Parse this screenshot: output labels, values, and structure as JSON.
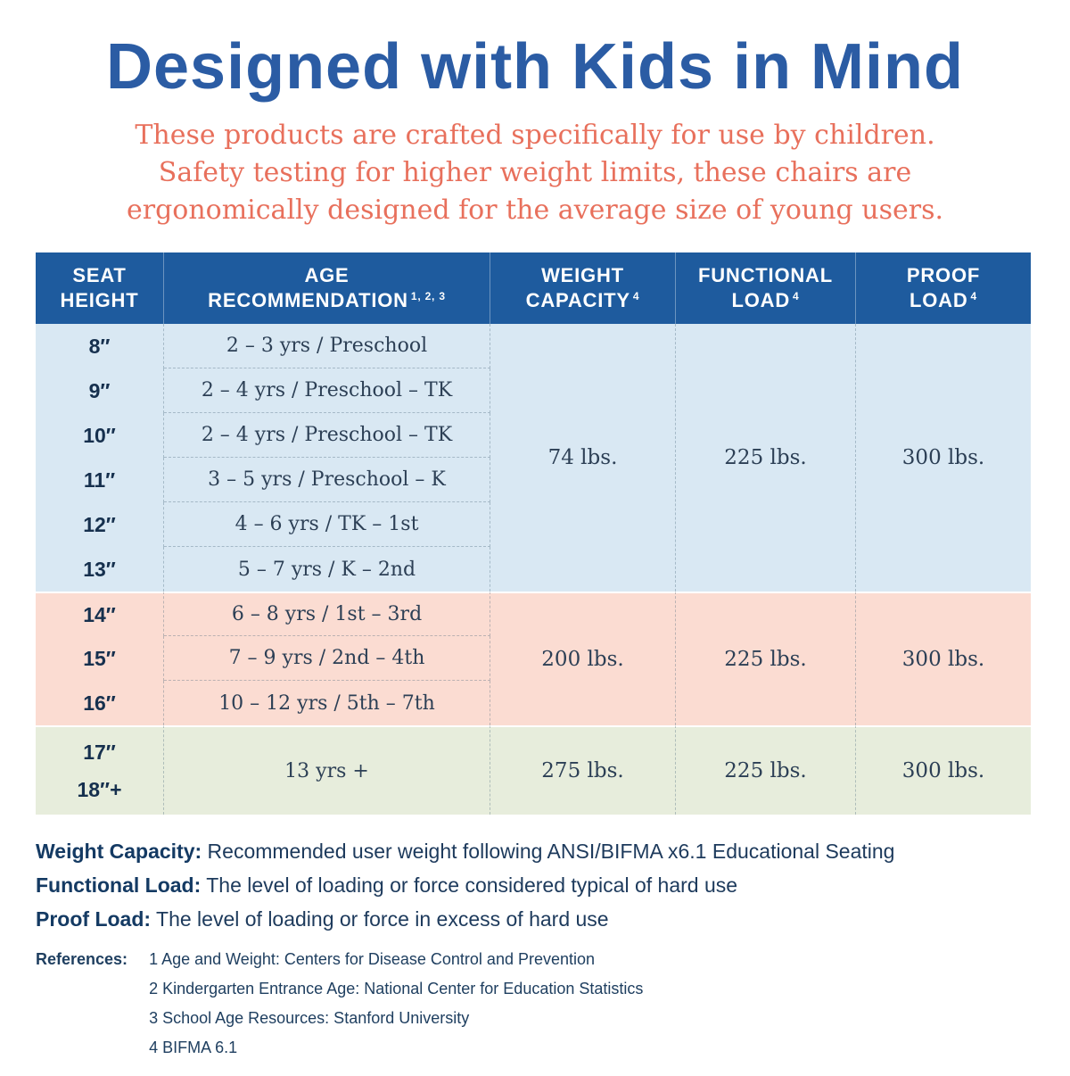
{
  "page": {
    "title": "Designed with Kids in Mind",
    "subtitle_lines": [
      "These products are crafted specifically for use by children.",
      "Safety testing for higher weight limits, these chairs are",
      "ergonomically designed for the average size of young users."
    ]
  },
  "table": {
    "headers": [
      {
        "line1": "SEAT",
        "line2": "HEIGHT",
        "sup": ""
      },
      {
        "line1": "AGE",
        "line2": "RECOMMENDATION",
        "sup": "1, 2, 3"
      },
      {
        "line1": "WEIGHT",
        "line2": "CAPACITY",
        "sup": "4"
      },
      {
        "line1": "FUNCTIONAL",
        "line2": "LOAD",
        "sup": "4"
      },
      {
        "line1": "PROOF",
        "line2": "LOAD",
        "sup": "4"
      }
    ],
    "groups": [
      {
        "rows": [
          {
            "height": "8″",
            "age": "2 – 3 yrs / Preschool"
          },
          {
            "height": "9″",
            "age": "2 – 4 yrs / Preschool – TK"
          },
          {
            "height": "10″",
            "age": "2 – 4 yrs / Preschool – TK"
          },
          {
            "height": "11″",
            "age": "3 – 5 yrs / Preschool – K"
          },
          {
            "height": "12″",
            "age": "4 – 6 yrs / TK – 1st"
          },
          {
            "height": "13″",
            "age": "5 – 7 yrs / K – 2nd"
          }
        ],
        "weight_capacity": "74 lbs.",
        "functional_load": "225 lbs.",
        "proof_load": "300 lbs."
      },
      {
        "rows": [
          {
            "height": "14″",
            "age": "6 – 8 yrs / 1st – 3rd"
          },
          {
            "height": "15″",
            "age": "7 – 9 yrs / 2nd – 4th"
          },
          {
            "height": "16″",
            "age": "10 – 12 yrs / 5th – 7th"
          }
        ],
        "weight_capacity": "200 lbs.",
        "functional_load": "225 lbs.",
        "proof_load": "300 lbs."
      },
      {
        "heights": [
          "17″",
          "18″+"
        ],
        "age": "13 yrs +",
        "weight_capacity": "275 lbs.",
        "functional_load": "225 lbs.",
        "proof_load": "300 lbs."
      }
    ]
  },
  "definitions": [
    {
      "term": "Weight Capacity:",
      "text": "Recommended user weight following ANSI/BIFMA x6.1 Educational Seating"
    },
    {
      "term": "Functional Load:",
      "text": "The level of loading or force considered typical of hard use"
    },
    {
      "term": "Proof Load:",
      "text": "The level of loading or force in excess of hard use"
    }
  ],
  "references": {
    "label": "References:",
    "items": [
      "1 Age and Weight: Centers for Disease Control and Prevention",
      "2 Kindergarten Entrance Age: National Center for Education Statistics",
      "3 School Age Resources: Stanford University",
      "4 BIFMA 6.1"
    ]
  }
}
